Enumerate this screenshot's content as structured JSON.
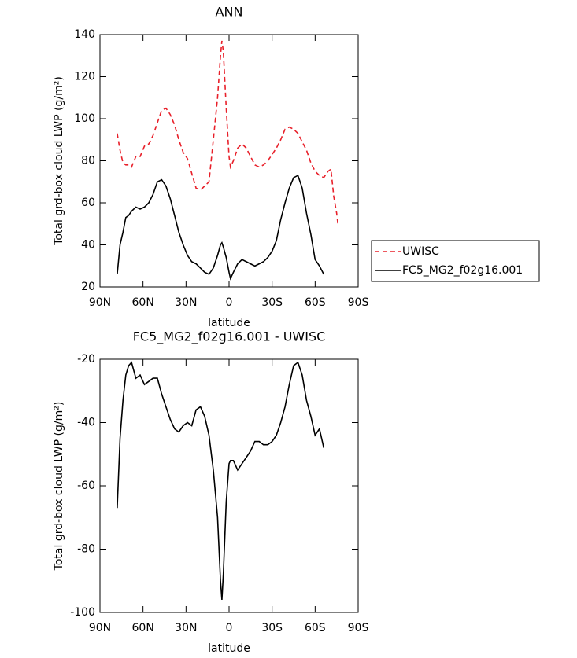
{
  "chart_data": [
    {
      "type": "line",
      "title": "ANN",
      "xlabel": "latitude",
      "ylabel": "Total grd-box cloud LWP (g/m²)",
      "x": [
        78,
        76,
        74,
        72,
        70,
        68,
        65,
        62,
        59,
        56,
        53,
        50,
        47,
        44,
        41,
        38,
        35,
        32,
        29,
        26,
        23,
        20,
        17,
        14,
        11,
        8,
        6,
        5,
        4,
        2,
        0,
        -1,
        -3,
        -6,
        -9,
        -12,
        -15,
        -18,
        -21,
        -24,
        -27,
        -30,
        -33,
        -36,
        -39,
        -42,
        -45,
        -48,
        -51,
        -54,
        -57,
        -60,
        -63,
        -66,
        -69,
        -71,
        -73,
        -75,
        -76
      ],
      "series": [
        {
          "name": "UWISC",
          "color": "#e8202a",
          "line_style": "dashed",
          "values": [
            93,
            85,
            79,
            78,
            78,
            77,
            82,
            82,
            87,
            88,
            92,
            98,
            104,
            105,
            102,
            97,
            90,
            84,
            81,
            74,
            67,
            66,
            68,
            70,
            90,
            110,
            130,
            137,
            132,
            105,
            82,
            77,
            80,
            86,
            88,
            86,
            82,
            78,
            77,
            78,
            80,
            83,
            86,
            90,
            95,
            96,
            95,
            93,
            89,
            85,
            79,
            75,
            73,
            72,
            75,
            76,
            63,
            55,
            49
          ]
        },
        {
          "name": "FC5_MG2_f02g16.001",
          "color": "#000000",
          "line_style": "solid",
          "values": [
            26,
            40,
            46,
            53,
            54,
            56,
            58,
            57,
            58,
            60,
            64,
            70,
            71,
            68,
            62,
            54,
            46,
            40,
            35,
            32,
            31,
            29,
            27,
            26,
            29,
            35,
            40,
            41,
            39,
            34,
            27,
            24,
            27,
            31,
            33,
            32,
            31,
            30,
            31,
            32,
            34,
            37,
            42,
            52,
            60,
            67,
            72,
            73,
            67,
            55,
            45,
            33,
            30,
            26,
            null,
            null,
            null,
            null,
            null
          ]
        }
      ],
      "xlim": [
        90,
        -90
      ],
      "xticks": [
        {
          "value": 90,
          "label": "90N"
        },
        {
          "value": 60,
          "label": "60N"
        },
        {
          "value": 30,
          "label": "30N"
        },
        0,
        {
          "value": -30,
          "label": "30S"
        },
        {
          "value": -60,
          "label": "60S"
        },
        {
          "value": -90,
          "label": "90S"
        }
      ],
      "ylim": [
        20,
        140
      ],
      "yticks": [
        20,
        40,
        60,
        80,
        100,
        120,
        140
      ],
      "legend": "right"
    },
    {
      "type": "line",
      "title": "FC5_MG2_f02g16.001 - UWISC",
      "xlabel": "latitude",
      "ylabel": "Total grd-box cloud LWP (g/m²)",
      "x": [
        78,
        76,
        74,
        72,
        70,
        68,
        65,
        62,
        59,
        56,
        53,
        50,
        47,
        44,
        41,
        38,
        35,
        32,
        29,
        26,
        23,
        20,
        17,
        14,
        11,
        8,
        6,
        5,
        4,
        2,
        0,
        -1,
        -3,
        -6,
        -9,
        -12,
        -15,
        -18,
        -21,
        -24,
        -27,
        -30,
        -33,
        -36,
        -39,
        -42,
        -45,
        -48,
        -51,
        -54,
        -57,
        -60,
        -63,
        -66
      ],
      "color": "#000000",
      "values": [
        -67,
        -45,
        -33,
        -25,
        -22,
        -21,
        -26,
        -25,
        -28,
        -27,
        -26,
        -26,
        -31,
        -35,
        -39,
        -42,
        -43,
        -41,
        -40,
        -41,
        -36,
        -35,
        -38,
        -44,
        -55,
        -70,
        -90,
        -96,
        -88,
        -65,
        -53,
        -52,
        -52,
        -55,
        -53,
        -51,
        -49,
        -46,
        -46,
        -47,
        -47,
        -46,
        -44,
        -40,
        -35,
        -28,
        -22,
        -21,
        -25,
        -33,
        -38,
        -44,
        -42,
        -48
      ],
      "xlim": [
        90,
        -90
      ],
      "xticks": [
        {
          "value": 90,
          "label": "90N"
        },
        {
          "value": 60,
          "label": "60N"
        },
        {
          "value": 30,
          "label": "30N"
        },
        0,
        {
          "value": -30,
          "label": "30S"
        },
        {
          "value": -60,
          "label": "60S"
        },
        {
          "value": -90,
          "label": "90S"
        }
      ],
      "ylim": [
        -100,
        -20
      ],
      "yticks": [
        -100,
        -80,
        -60,
        -40,
        -20
      ]
    }
  ]
}
